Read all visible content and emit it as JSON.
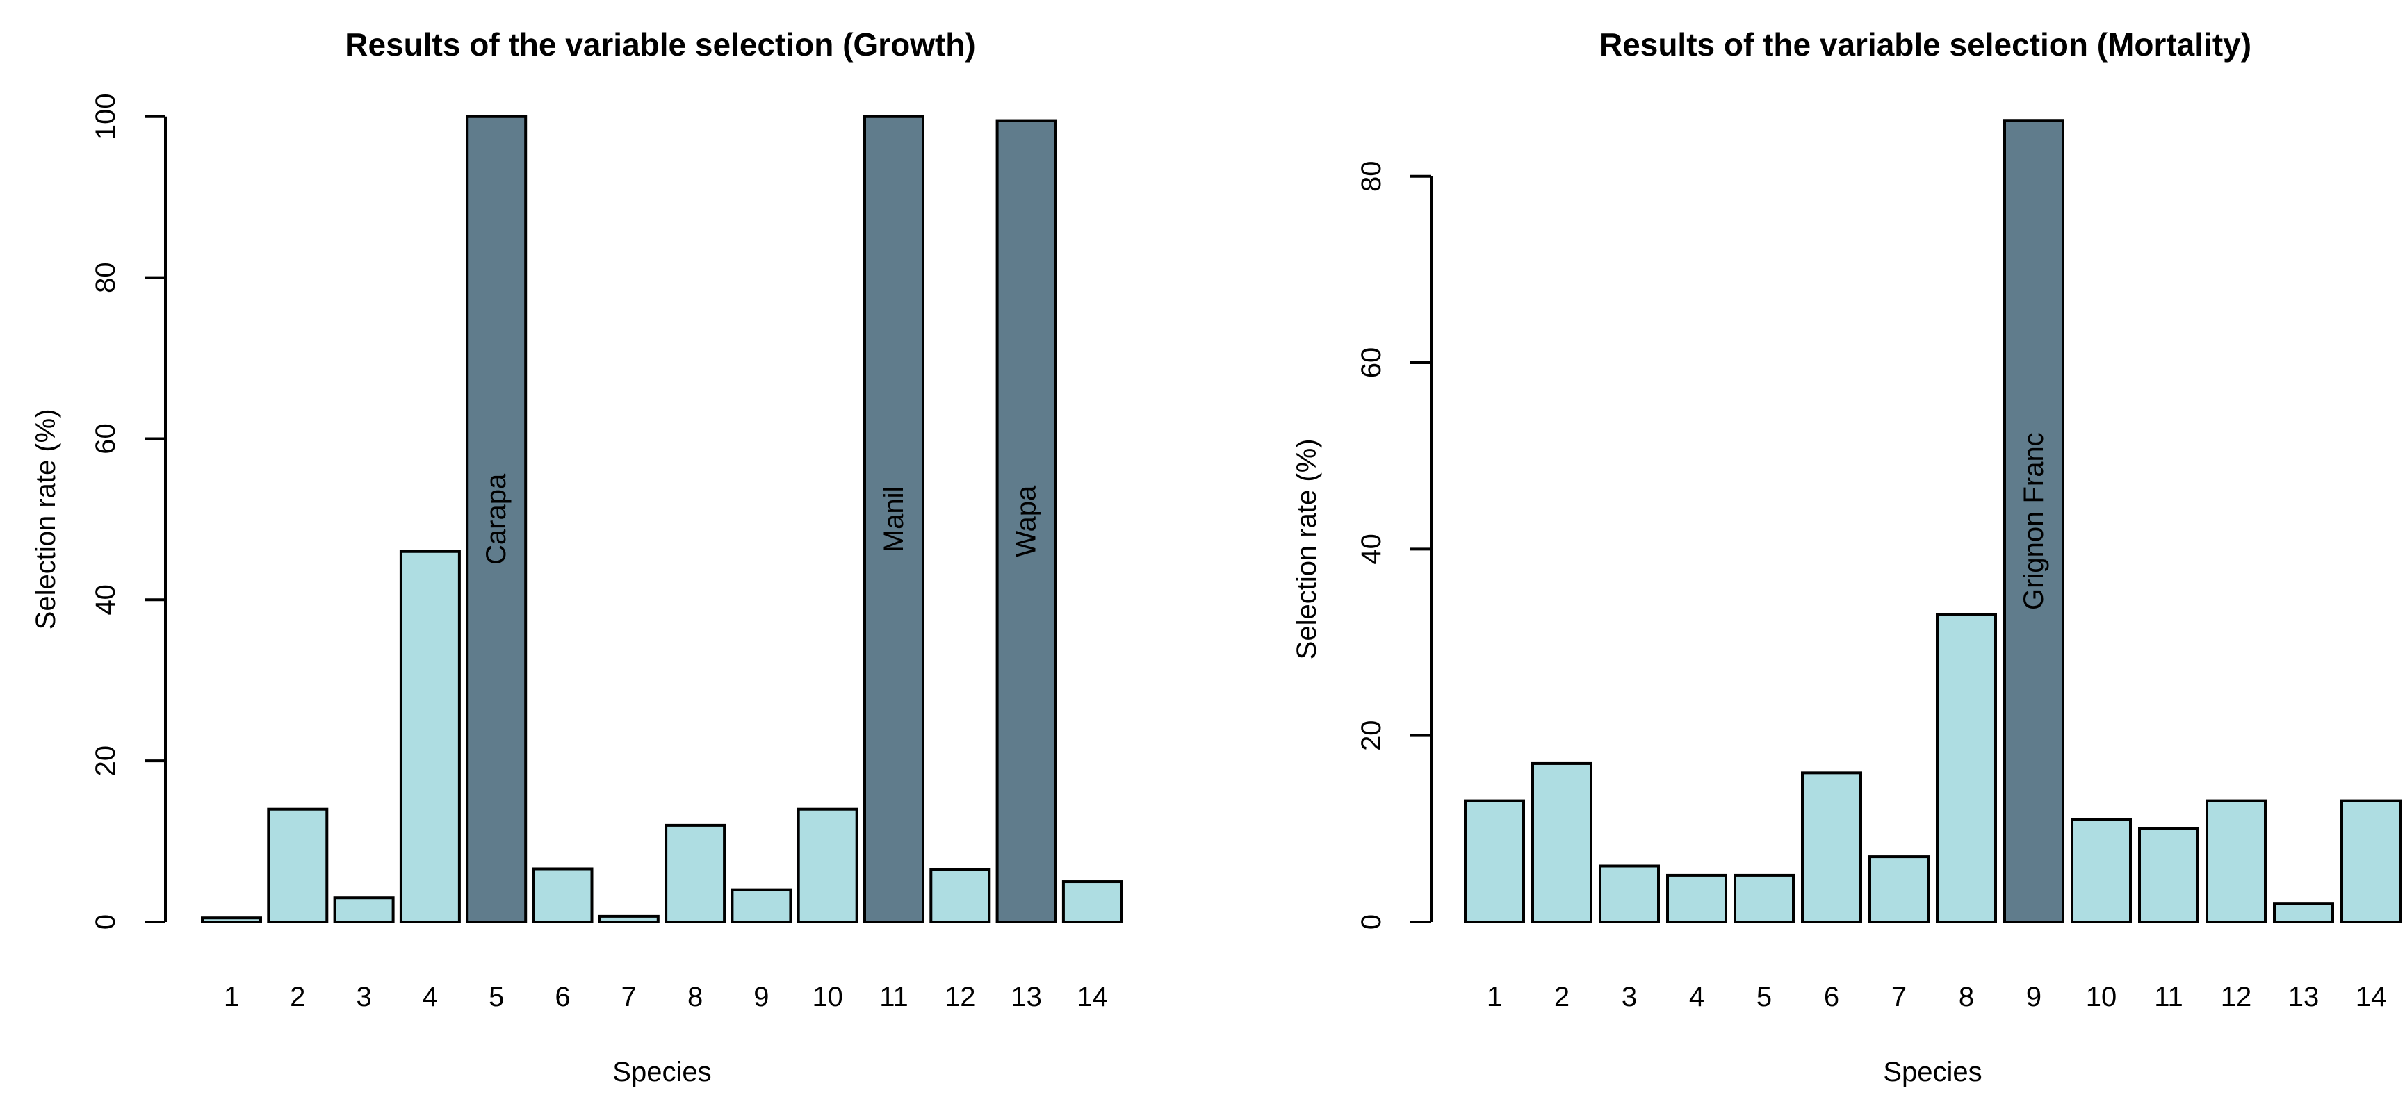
{
  "figure": {
    "background": "#FFFFFF"
  },
  "chart_data": [
    {
      "type": "bar",
      "title": "Results of the variable selection (Growth)",
      "xlabel": "Species",
      "ylabel": "Selection rate (%)",
      "categories": [
        "1",
        "2",
        "3",
        "4",
        "5",
        "6",
        "7",
        "8",
        "9",
        "10",
        "11",
        "12",
        "13",
        "14"
      ],
      "values": [
        0.5,
        14,
        3,
        46,
        100,
        6.6,
        0.7,
        12,
        4,
        14,
        100,
        6.5,
        99.5,
        5
      ],
      "bar_labels": [
        "",
        "",
        "",
        "",
        "Carapa",
        "",
        "",
        "",
        "",
        "",
        "Manil",
        "",
        "Wapa",
        ""
      ],
      "yticks": [
        0,
        20,
        40,
        60,
        80,
        100
      ],
      "ylim": [
        0,
        103
      ],
      "grid": false,
      "legend_position": "none",
      "colors": {
        "bar": "#AEDDE2",
        "highlight": "#607C8C",
        "border": "#000000",
        "text": "#000000"
      }
    },
    {
      "type": "bar",
      "title": "Results of the variable selection (Mortality)",
      "xlabel": "Species",
      "ylabel": "Selection rate (%)",
      "categories": [
        "1",
        "2",
        "3",
        "4",
        "5",
        "6",
        "7",
        "8",
        "9",
        "10",
        "11",
        "12",
        "13",
        "14"
      ],
      "values": [
        13,
        17,
        6,
        5,
        5,
        16,
        7,
        33,
        86,
        11,
        10,
        13,
        2,
        13
      ],
      "bar_labels": [
        "",
        "",
        "",
        "",
        "",
        "",
        "",
        "",
        "Grignon Franc",
        "",
        "",
        "",
        "",
        ""
      ],
      "yticks": [
        0,
        20,
        40,
        60,
        80
      ],
      "ylim": [
        0,
        89
      ],
      "grid": false,
      "legend_position": "none",
      "colors": {
        "bar": "#AEDDE2",
        "highlight": "#607C8C",
        "border": "#000000",
        "text": "#000000"
      }
    }
  ]
}
